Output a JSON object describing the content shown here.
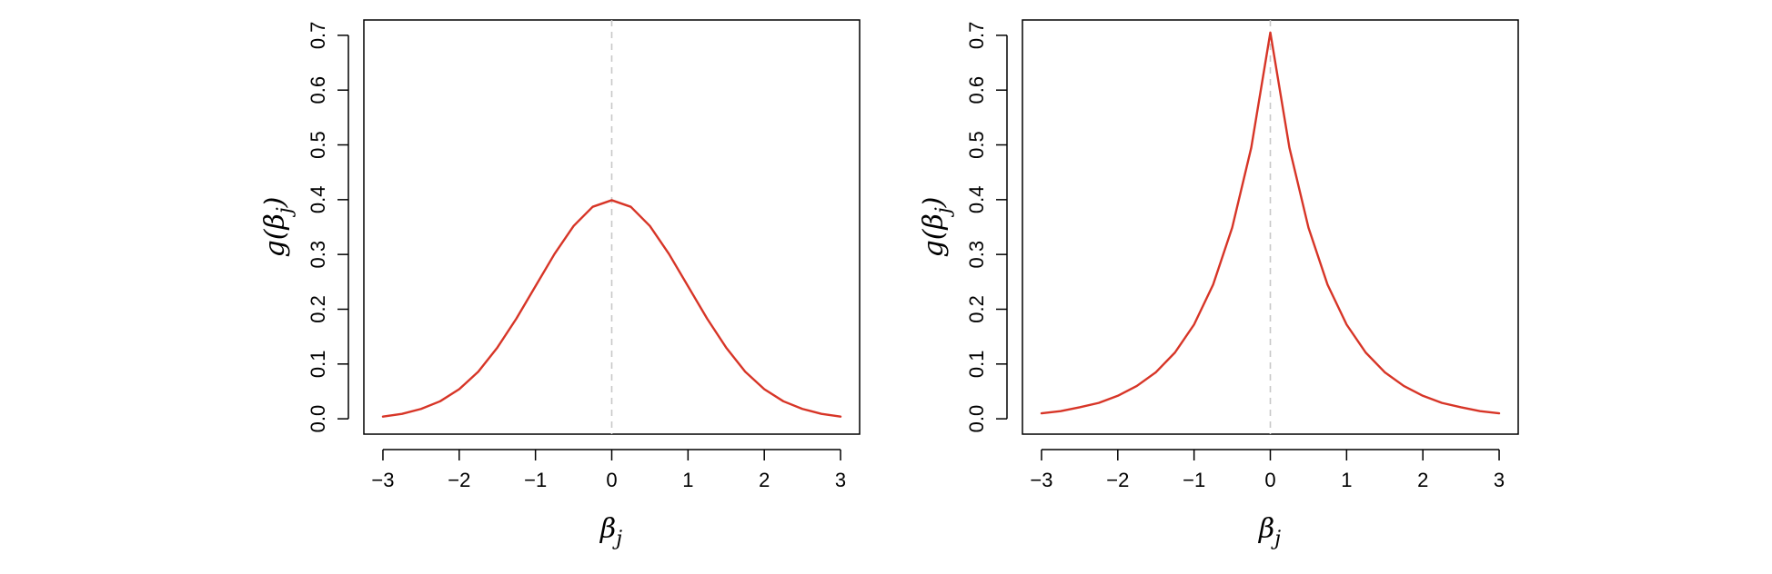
{
  "chart_data": [
    {
      "type": "line",
      "xlabel": "βj",
      "ylabel": "g(βj)",
      "xlim": [
        -3.25,
        3.25
      ],
      "ylim": [
        -0.028,
        0.728
      ],
      "x_ticks": [
        -3,
        -2,
        -1,
        0,
        1,
        2,
        3
      ],
      "x_tick_labels": [
        "−3",
        "−2",
        "−1",
        "0",
        "1",
        "2",
        "3"
      ],
      "y_ticks": [
        0.0,
        0.1,
        0.2,
        0.3,
        0.4,
        0.5,
        0.6,
        0.7
      ],
      "y_tick_labels": [
        "0.0",
        "0.1",
        "0.2",
        "0.3",
        "0.4",
        "0.5",
        "0.6",
        "0.7"
      ],
      "grid": false,
      "reference_line": {
        "x": 0,
        "style": "dashed",
        "color": "#c8c8c8"
      },
      "series": [
        {
          "color": "#d73527",
          "x": [
            -3.0,
            -2.75,
            -2.5,
            -2.25,
            -2.0,
            -1.75,
            -1.5,
            -1.25,
            -1.0,
            -0.75,
            -0.5,
            -0.25,
            0.0,
            0.25,
            0.5,
            0.75,
            1.0,
            1.25,
            1.5,
            1.75,
            2.0,
            2.25,
            2.5,
            2.75,
            3.0
          ],
          "y": [
            0.004,
            0.009,
            0.018,
            0.032,
            0.054,
            0.086,
            0.13,
            0.183,
            0.242,
            0.301,
            0.352,
            0.387,
            0.399,
            0.387,
            0.352,
            0.301,
            0.242,
            0.183,
            0.13,
            0.086,
            0.054,
            0.032,
            0.018,
            0.009,
            0.004
          ]
        }
      ]
    },
    {
      "type": "line",
      "xlabel": "βj",
      "ylabel": "g(βj)",
      "xlim": [
        -3.25,
        3.25
      ],
      "ylim": [
        -0.028,
        0.728
      ],
      "x_ticks": [
        -3,
        -2,
        -1,
        0,
        1,
        2,
        3
      ],
      "x_tick_labels": [
        "−3",
        "−2",
        "−1",
        "0",
        "1",
        "2",
        "3"
      ],
      "y_ticks": [
        0.0,
        0.1,
        0.2,
        0.3,
        0.4,
        0.5,
        0.6,
        0.7
      ],
      "y_tick_labels": [
        "0.0",
        "0.1",
        "0.2",
        "0.3",
        "0.4",
        "0.5",
        "0.6",
        "0.7"
      ],
      "grid": false,
      "reference_line": {
        "x": 0,
        "style": "dashed",
        "color": "#c8c8c8"
      },
      "series": [
        {
          "color": "#d73527",
          "x": [
            -3.0,
            -2.75,
            -2.5,
            -2.25,
            -2.0,
            -1.75,
            -1.5,
            -1.25,
            -1.0,
            -0.75,
            -0.5,
            -0.25,
            0.0,
            0.25,
            0.5,
            0.75,
            1.0,
            1.25,
            1.5,
            1.75,
            2.0,
            2.25,
            2.5,
            2.75,
            3.0
          ],
          "y": [
            0.01,
            0.014,
            0.021,
            0.029,
            0.042,
            0.06,
            0.085,
            0.121,
            0.172,
            0.245,
            0.349,
            0.495,
            0.705,
            0.495,
            0.349,
            0.245,
            0.172,
            0.121,
            0.085,
            0.06,
            0.042,
            0.029,
            0.021,
            0.014,
            0.01
          ]
        }
      ]
    }
  ]
}
